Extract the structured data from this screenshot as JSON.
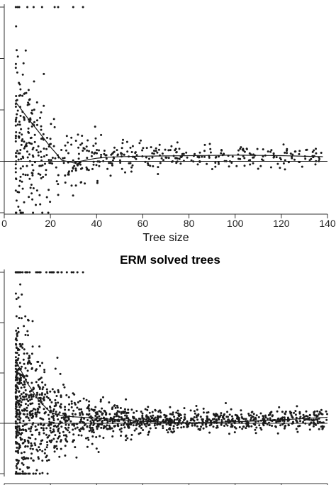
{
  "colors": {
    "points": "#1a1a1a",
    "line": "#1a1a1a",
    "axis": "#333333"
  },
  "chart_data": [
    {
      "type": "scatter",
      "title": "",
      "xlabel": "Tree size",
      "ylabel": "",
      "xlim": [
        0,
        140
      ],
      "ylim": [
        -1.05,
        3.2
      ],
      "xticks": [
        0,
        20,
        40,
        60,
        80,
        100,
        120,
        140
      ],
      "xtick_labels": [
        "0",
        "20",
        "40",
        "60",
        "80",
        "100",
        "120",
        "140"
      ],
      "grid": false,
      "series": [
        {
          "kind": "points",
          "note_cap_top": 3.0,
          "note_cap_bottom": -1.0,
          "x_range": [
            5,
            138
          ],
          "approx_count": 560
        },
        {
          "kind": "smooth_line",
          "x": [
            5,
            10,
            15,
            20,
            25,
            30,
            35,
            40,
            45,
            50,
            60,
            80,
            100,
            120,
            138
          ],
          "y": [
            1.15,
            0.85,
            0.57,
            0.28,
            0.02,
            -0.03,
            0.02,
            0.06,
            0.08,
            0.09,
            0.1,
            0.11,
            0.12,
            0.11,
            0.09
          ]
        },
        {
          "kind": "reference_line",
          "y": 0.0
        }
      ]
    },
    {
      "type": "scatter",
      "title": "ERM solved trees",
      "xlabel": "",
      "ylabel": "",
      "xlim": [
        0,
        140
      ],
      "ylim": [
        -1.05,
        3.2
      ],
      "xticks": [
        0,
        20,
        40,
        60,
        80,
        100,
        120,
        140
      ],
      "xtick_labels": [],
      "grid": false,
      "series": [
        {
          "kind": "points",
          "note_cap_top": 3.0,
          "note_cap_bottom": -1.0,
          "x_range": [
            5,
            140
          ],
          "approx_count": 1500
        },
        {
          "kind": "smooth_line",
          "x": [
            5,
            10,
            15,
            20,
            25,
            30,
            40,
            60,
            80,
            100,
            120,
            140
          ],
          "y": [
            1.25,
            0.8,
            0.45,
            0.22,
            0.15,
            0.13,
            0.1,
            0.04,
            0.01,
            0.03,
            0.07,
            0.12
          ]
        },
        {
          "kind": "reference_line",
          "y": 0.0
        }
      ]
    }
  ]
}
